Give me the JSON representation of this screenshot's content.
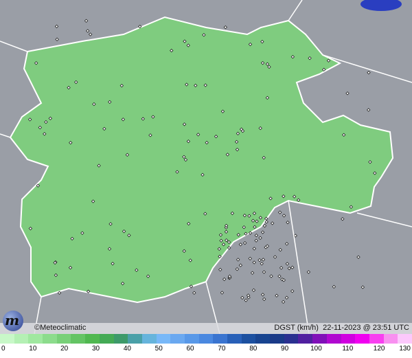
{
  "map": {
    "copyright": "©Meteoclimatic",
    "variable_label": "DGST (km/h)",
    "datetime": "22-11-2023 @ 23:51 UTC",
    "logo_letter": "m",
    "colors": {
      "background": "#9a9ea6",
      "region": "#7fcc7f",
      "border": "#ffffff"
    }
  },
  "legend": {
    "ticks": [
      "0",
      "10",
      "20",
      "30",
      "40",
      "50",
      "60",
      "70",
      "80",
      "90",
      "100",
      "110",
      "120",
      "130"
    ],
    "colors": [
      "#c8f8c8",
      "#b4f0b4",
      "#a0e8a0",
      "#8cdc8c",
      "#78d078",
      "#64c464",
      "#50b850",
      "#44aa55",
      "#3d9a6a",
      "#4aa0a8",
      "#66b4dc",
      "#78b8f8",
      "#6aa8f0",
      "#5898e8",
      "#4a88e0",
      "#3a74d0",
      "#2860b8",
      "#1c50a0",
      "#184490",
      "#1a3a88",
      "#2a3090",
      "#5020a0",
      "#8010b8",
      "#b008d0",
      "#d000e0",
      "#f000f0",
      "#f840f0",
      "#f890f0",
      "#fcc8fc"
    ]
  }
}
